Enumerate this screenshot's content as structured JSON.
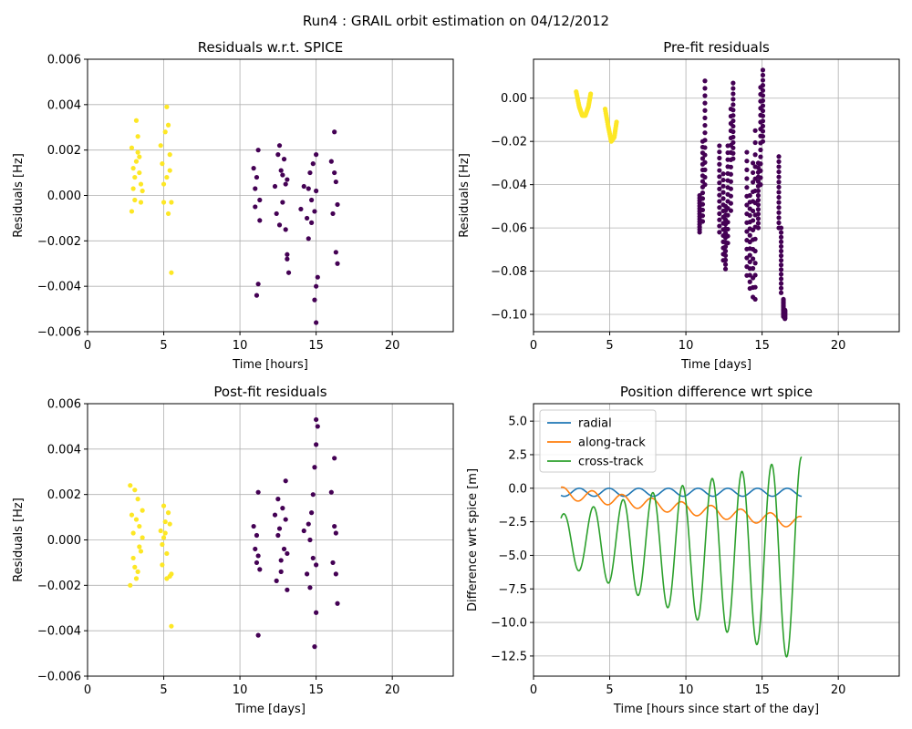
{
  "suptitle": "Run4 : GRAIL orbit estimation on 04/12/2012",
  "colors": {
    "station_a": "#440154",
    "station_b": "#fde725",
    "radial": "#1f77b4",
    "along_track": "#ff7f0e",
    "cross_track": "#2ca02c",
    "grid": "#b0b0b0"
  },
  "chart_data": [
    {
      "type": "scatter",
      "title": "Residuals w.r.t. SPICE",
      "xlabel": "Time [hours]",
      "ylabel": "Residuals [Hz]",
      "xlim": [
        0,
        24
      ],
      "ylim": [
        -0.006,
        0.006
      ],
      "xticks": [
        "0",
        "5",
        "10",
        "15",
        "20"
      ],
      "yticks": [
        "−0.006",
        "−0.004",
        "−0.002",
        "0.000",
        "0.002",
        "0.004",
        "0.006"
      ],
      "ytick_values": [
        -0.006,
        -0.004,
        -0.002,
        0,
        0.002,
        0.004,
        0.006
      ],
      "grid": true,
      "series": [
        {
          "color": "#fde725",
          "x": [
            2.9,
            3.0,
            3.1,
            3.2,
            3.3,
            3.4,
            3.5,
            3.6,
            3.1,
            3.3,
            3.4,
            2.9,
            3.2,
            3.5,
            3.0,
            4.8,
            4.9,
            5.0,
            5.1,
            5.2,
            5.3,
            5.4,
            5.5,
            5.0,
            5.2,
            5.3,
            5.4,
            5.5
          ],
          "y": [
            0.0021,
            0.0012,
            0.0008,
            0.0033,
            0.0026,
            0.0017,
            0.0005,
            0.0002,
            -0.0002,
            0.0019,
            0.001,
            -0.0007,
            0.0015,
            -0.0003,
            0.0003,
            0.0022,
            0.0014,
            0.0005,
            0.0028,
            0.0039,
            0.0031,
            0.0018,
            -0.0003,
            -0.0003,
            0.0008,
            -0.0008,
            0.0011,
            -0.0034
          ]
        },
        {
          "color": "#440154",
          "x": [
            10.9,
            11.0,
            11.1,
            11.2,
            11.3,
            11.2,
            11.1,
            11.0,
            11.3,
            12.3,
            12.4,
            12.5,
            12.6,
            12.7,
            12.8,
            12.9,
            13.0,
            13.1,
            13.2,
            12.6,
            12.8,
            13.0,
            13.1,
            13.1,
            14.0,
            14.2,
            14.4,
            14.5,
            14.6,
            14.7,
            14.8,
            14.9,
            15.0,
            15.1,
            14.5,
            14.7,
            14.9,
            15.0,
            15.0,
            15.0,
            16.0,
            16.1,
            16.2,
            16.3,
            16.4,
            16.3,
            16.2,
            16.4
          ],
          "y": [
            0.0012,
            -0.0005,
            0.0008,
            0.002,
            -0.0011,
            -0.0039,
            -0.0044,
            0.0003,
            -0.0002,
            0.0004,
            -0.0008,
            0.0018,
            0.0022,
            0.0011,
            -0.0003,
            0.0016,
            0.0005,
            -0.0026,
            -0.0034,
            -0.0013,
            0.0009,
            -0.0015,
            0.0007,
            -0.0028,
            -0.0006,
            0.0004,
            -0.001,
            -0.0019,
            0.001,
            -0.0002,
            0.0014,
            -0.0007,
            0.0018,
            -0.0036,
            0.0003,
            -0.0012,
            -0.0046,
            -0.004,
            -0.0056,
            0.0002,
            0.0015,
            -0.0008,
            0.0028,
            0.0006,
            -0.003,
            -0.0025,
            0.001,
            -0.0004
          ]
        }
      ]
    },
    {
      "type": "scatter",
      "title": "Pre-fit residuals",
      "xlabel": "Time [days]",
      "ylabel": "Residuals [Hz]",
      "xlim": [
        0,
        24
      ],
      "ylim": [
        -0.108,
        0.018
      ],
      "xticks": [
        "0",
        "5",
        "10",
        "15",
        "20"
      ],
      "yticks": [
        "−0.10",
        "−0.08",
        "−0.06",
        "−0.04",
        "−0.02",
        "0.00"
      ],
      "ytick_values": [
        -0.1,
        -0.08,
        -0.06,
        -0.04,
        -0.02,
        0.0
      ],
      "grid": true,
      "series": [
        {
          "color": "#fde725",
          "curves": [
            {
              "x": [
                2.8,
                3.0,
                3.2,
                3.4,
                3.6,
                3.75
              ],
              "y": [
                0.003,
                -0.004,
                -0.008,
                -0.008,
                -0.004,
                0.002
              ]
            },
            {
              "x": [
                4.7,
                4.9,
                5.1,
                5.3,
                5.45
              ],
              "y": [
                -0.005,
                -0.013,
                -0.02,
                -0.018,
                -0.011
              ]
            }
          ]
        },
        {
          "color": "#440154",
          "segments": [
            {
              "x": 10.9,
              "ymin": -0.062,
              "ymax": -0.045
            },
            {
              "x": 11.1,
              "ymin": -0.057,
              "ymax": -0.02
            },
            {
              "x": 11.25,
              "ymin": -0.04,
              "ymax": 0.008
            },
            {
              "x": 12.2,
              "ymin": -0.062,
              "ymax": -0.022
            },
            {
              "x": 12.45,
              "ymin": -0.075,
              "ymax": -0.035
            },
            {
              "x": 12.6,
              "ymin": -0.079,
              "ymax": -0.05
            },
            {
              "x": 12.75,
              "ymin": -0.067,
              "ymax": -0.022
            },
            {
              "x": 12.95,
              "ymin": -0.052,
              "ymax": -0.005
            },
            {
              "x": 13.1,
              "ymin": -0.028,
              "ymax": 0.007
            },
            {
              "x": 14.0,
              "ymin": -0.082,
              "ymax": -0.025
            },
            {
              "x": 14.2,
              "ymin": -0.088,
              "ymax": -0.045
            },
            {
              "x": 14.4,
              "ymin": -0.092,
              "ymax": -0.03
            },
            {
              "x": 14.55,
              "ymin": -0.093,
              "ymax": -0.015
            },
            {
              "x": 14.75,
              "ymin": -0.06,
              "ymax": -0.03
            },
            {
              "x": 14.9,
              "ymin": -0.04,
              "ymax": 0.005
            },
            {
              "x": 15.05,
              "ymin": -0.02,
              "ymax": 0.013
            },
            {
              "x": 16.1,
              "ymin": -0.06,
              "ymax": -0.027
            },
            {
              "x": 16.25,
              "ymin": -0.09,
              "ymax": -0.06
            },
            {
              "x": 16.4,
              "ymin": -0.101,
              "ymax": -0.093
            },
            {
              "x": 16.5,
              "ymin": -0.102,
              "ymax": -0.098
            }
          ]
        }
      ]
    },
    {
      "type": "scatter",
      "title": "Post-fit residuals",
      "xlabel": "Time [days]",
      "ylabel": "Residuals [Hz]",
      "xlim": [
        0,
        24
      ],
      "ylim": [
        -0.006,
        0.006
      ],
      "xticks": [
        "0",
        "5",
        "10",
        "15",
        "20"
      ],
      "yticks": [
        "−0.006",
        "−0.004",
        "−0.002",
        "0.000",
        "0.002",
        "0.004",
        "0.006"
      ],
      "ytick_values": [
        -0.006,
        -0.004,
        -0.002,
        0,
        0.002,
        0.004,
        0.006
      ],
      "grid": true,
      "series": [
        {
          "color": "#fde725",
          "x": [
            2.8,
            2.9,
            3.0,
            3.1,
            3.2,
            3.3,
            3.4,
            3.5,
            3.6,
            2.8,
            3.0,
            3.2,
            3.4,
            3.6,
            3.1,
            3.3,
            4.8,
            4.9,
            5.0,
            5.1,
            5.2,
            5.3,
            5.4,
            5.5,
            5.0,
            5.2,
            5.4,
            5.5,
            4.9,
            5.1
          ],
          "y": [
            0.0024,
            0.0011,
            0.0003,
            -0.0012,
            -0.0017,
            0.0018,
            0.0006,
            -0.0005,
            0.0013,
            -0.002,
            -0.0008,
            0.0009,
            -0.0003,
            0.0001,
            0.0022,
            -0.0014,
            0.0004,
            -0.0011,
            0.0015,
            0.0008,
            -0.0006,
            0.0012,
            -0.0016,
            -0.0038,
            0.0001,
            -0.0017,
            0.0007,
            -0.0015,
            -0.0002,
            0.0003
          ]
        },
        {
          "color": "#440154",
          "x": [
            10.9,
            11.0,
            11.1,
            11.2,
            11.3,
            11.2,
            11.1,
            11.2,
            12.3,
            12.4,
            12.5,
            12.6,
            12.7,
            12.8,
            12.9,
            13.0,
            13.1,
            12.5,
            12.7,
            13.0,
            13.1,
            14.2,
            14.4,
            14.5,
            14.6,
            14.7,
            14.8,
            14.9,
            15.0,
            15.1,
            14.6,
            14.8,
            14.9,
            15.0,
            15.0,
            15.0,
            16.0,
            16.1,
            16.2,
            16.3,
            16.4,
            16.3,
            16.2
          ],
          "y": [
            0.0006,
            -0.0004,
            -0.001,
            0.0021,
            -0.0013,
            -0.0042,
            0.0002,
            -0.0007,
            0.0011,
            -0.0018,
            0.0018,
            0.0005,
            -0.0009,
            0.0014,
            -0.0004,
            0.0026,
            -0.0022,
            0.0002,
            -0.0014,
            0.0009,
            -0.0006,
            0.0004,
            -0.0015,
            0.0007,
            -0.0021,
            0.0012,
            -0.0008,
            0.0032,
            -0.0032,
            0.005,
            0.0,
            0.002,
            -0.0047,
            0.0053,
            0.0042,
            -0.0011,
            0.0021,
            -0.001,
            0.0036,
            0.0003,
            -0.0028,
            -0.0015,
            0.0006
          ]
        }
      ]
    },
    {
      "type": "line",
      "title": "Position difference wrt spice",
      "xlabel": "Time [hours since start of the day]",
      "ylabel": "Difference wrt spice [m]",
      "xlim": [
        0,
        24
      ],
      "ylim": [
        -14,
        6.3
      ],
      "xticks": [
        "0",
        "5",
        "10",
        "15",
        "20"
      ],
      "yticks": [
        "−12.5",
        "−10.0",
        "−7.5",
        "−5.0",
        "−2.5",
        "0.0",
        "2.5",
        "5.0"
      ],
      "ytick_values": [
        -12.5,
        -10,
        -7.5,
        -5,
        -2.5,
        0,
        2.5,
        5
      ],
      "grid": true,
      "legend_position": "top-left",
      "t_range": [
        1.8,
        17.6
      ],
      "series": [
        {
          "name": "radial",
          "color": "#1f77b4",
          "model": "radial"
        },
        {
          "name": "along-track",
          "color": "#ff7f0e",
          "model": "along"
        },
        {
          "name": "cross-track",
          "color": "#2ca02c",
          "model": "cross"
        }
      ]
    }
  ]
}
